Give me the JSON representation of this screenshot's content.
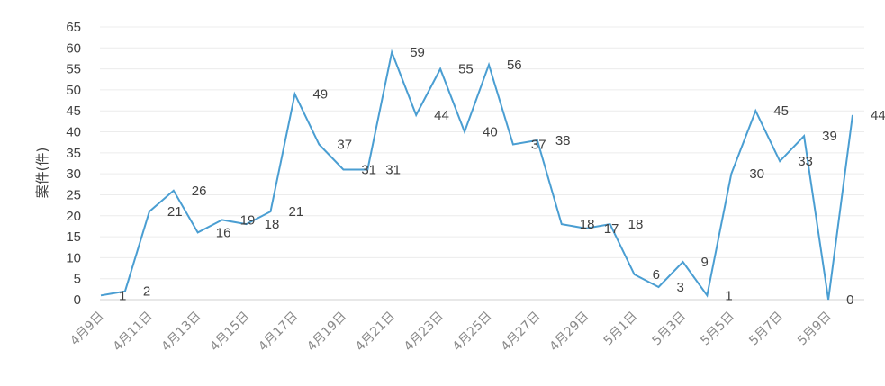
{
  "chart_data": {
    "type": "line",
    "ylabel": "案件(件)",
    "ylim": [
      0,
      65
    ],
    "ytick_step": 5,
    "grid": true,
    "line_color": "#4a9ed2",
    "x": [
      "4月9日",
      "4月10日",
      "4月11日",
      "4月12日",
      "4月13日",
      "4月14日",
      "4月15日",
      "4月16日",
      "4月17日",
      "4月18日",
      "4月19日",
      "4月20日",
      "4月21日",
      "4月22日",
      "4月23日",
      "4月24日",
      "4月25日",
      "4月26日",
      "4月27日",
      "4月28日",
      "4月29日",
      "4月30日",
      "5月1日",
      "5月2日",
      "5月3日",
      "5月4日",
      "5月5日",
      "5月6日",
      "5月7日",
      "5月8日",
      "5月9日",
      "5月10日"
    ],
    "x_tick_labels": [
      "4月9日",
      "4月11日",
      "4月13日",
      "4月15日",
      "4月17日",
      "4月19日",
      "4月21日",
      "4月23日",
      "4月25日",
      "4月27日",
      "4月29日",
      "5月1日",
      "5月3日",
      "5月5日",
      "5月7日",
      "5月9日"
    ],
    "values": [
      1,
      2,
      21,
      26,
      16,
      19,
      18,
      21,
      49,
      37,
      31,
      31,
      59,
      44,
      55,
      40,
      56,
      37,
      38,
      18,
      17,
      18,
      6,
      3,
      9,
      1,
      30,
      45,
      33,
      39,
      0,
      44
    ]
  }
}
